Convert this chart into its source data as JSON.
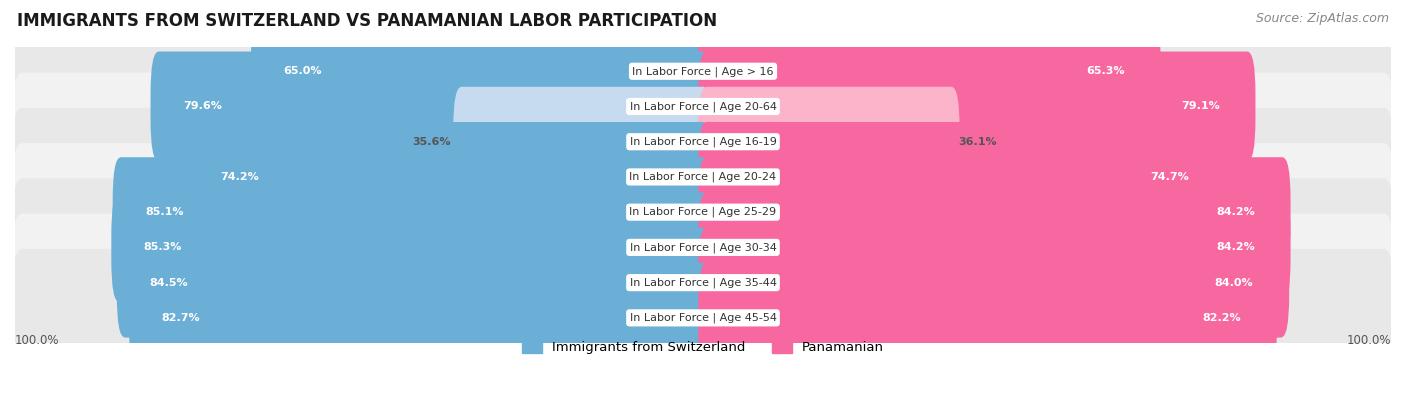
{
  "title": "IMMIGRANTS FROM SWITZERLAND VS PANAMANIAN LABOR PARTICIPATION",
  "source": "Source: ZipAtlas.com",
  "categories": [
    "In Labor Force | Age > 16",
    "In Labor Force | Age 20-64",
    "In Labor Force | Age 16-19",
    "In Labor Force | Age 20-24",
    "In Labor Force | Age 25-29",
    "In Labor Force | Age 30-34",
    "In Labor Force | Age 35-44",
    "In Labor Force | Age 45-54"
  ],
  "swiss_values": [
    65.0,
    79.6,
    35.6,
    74.2,
    85.1,
    85.3,
    84.5,
    82.7
  ],
  "panama_values": [
    65.3,
    79.1,
    36.1,
    74.7,
    84.2,
    84.2,
    84.0,
    82.2
  ],
  "swiss_color": "#6baed6",
  "swiss_color_light": "#c6dbef",
  "panama_color": "#f768a1",
  "panama_color_light": "#fbb4ca",
  "row_bg_odd": "#f2f2f2",
  "row_bg_even": "#e8e8e8",
  "max_value": 100.0,
  "legend_swiss": "Immigrants from Switzerland",
  "legend_panama": "Panamanian",
  "title_fontsize": 12,
  "source_fontsize": 9,
  "label_fontsize": 8,
  "value_fontsize": 8
}
